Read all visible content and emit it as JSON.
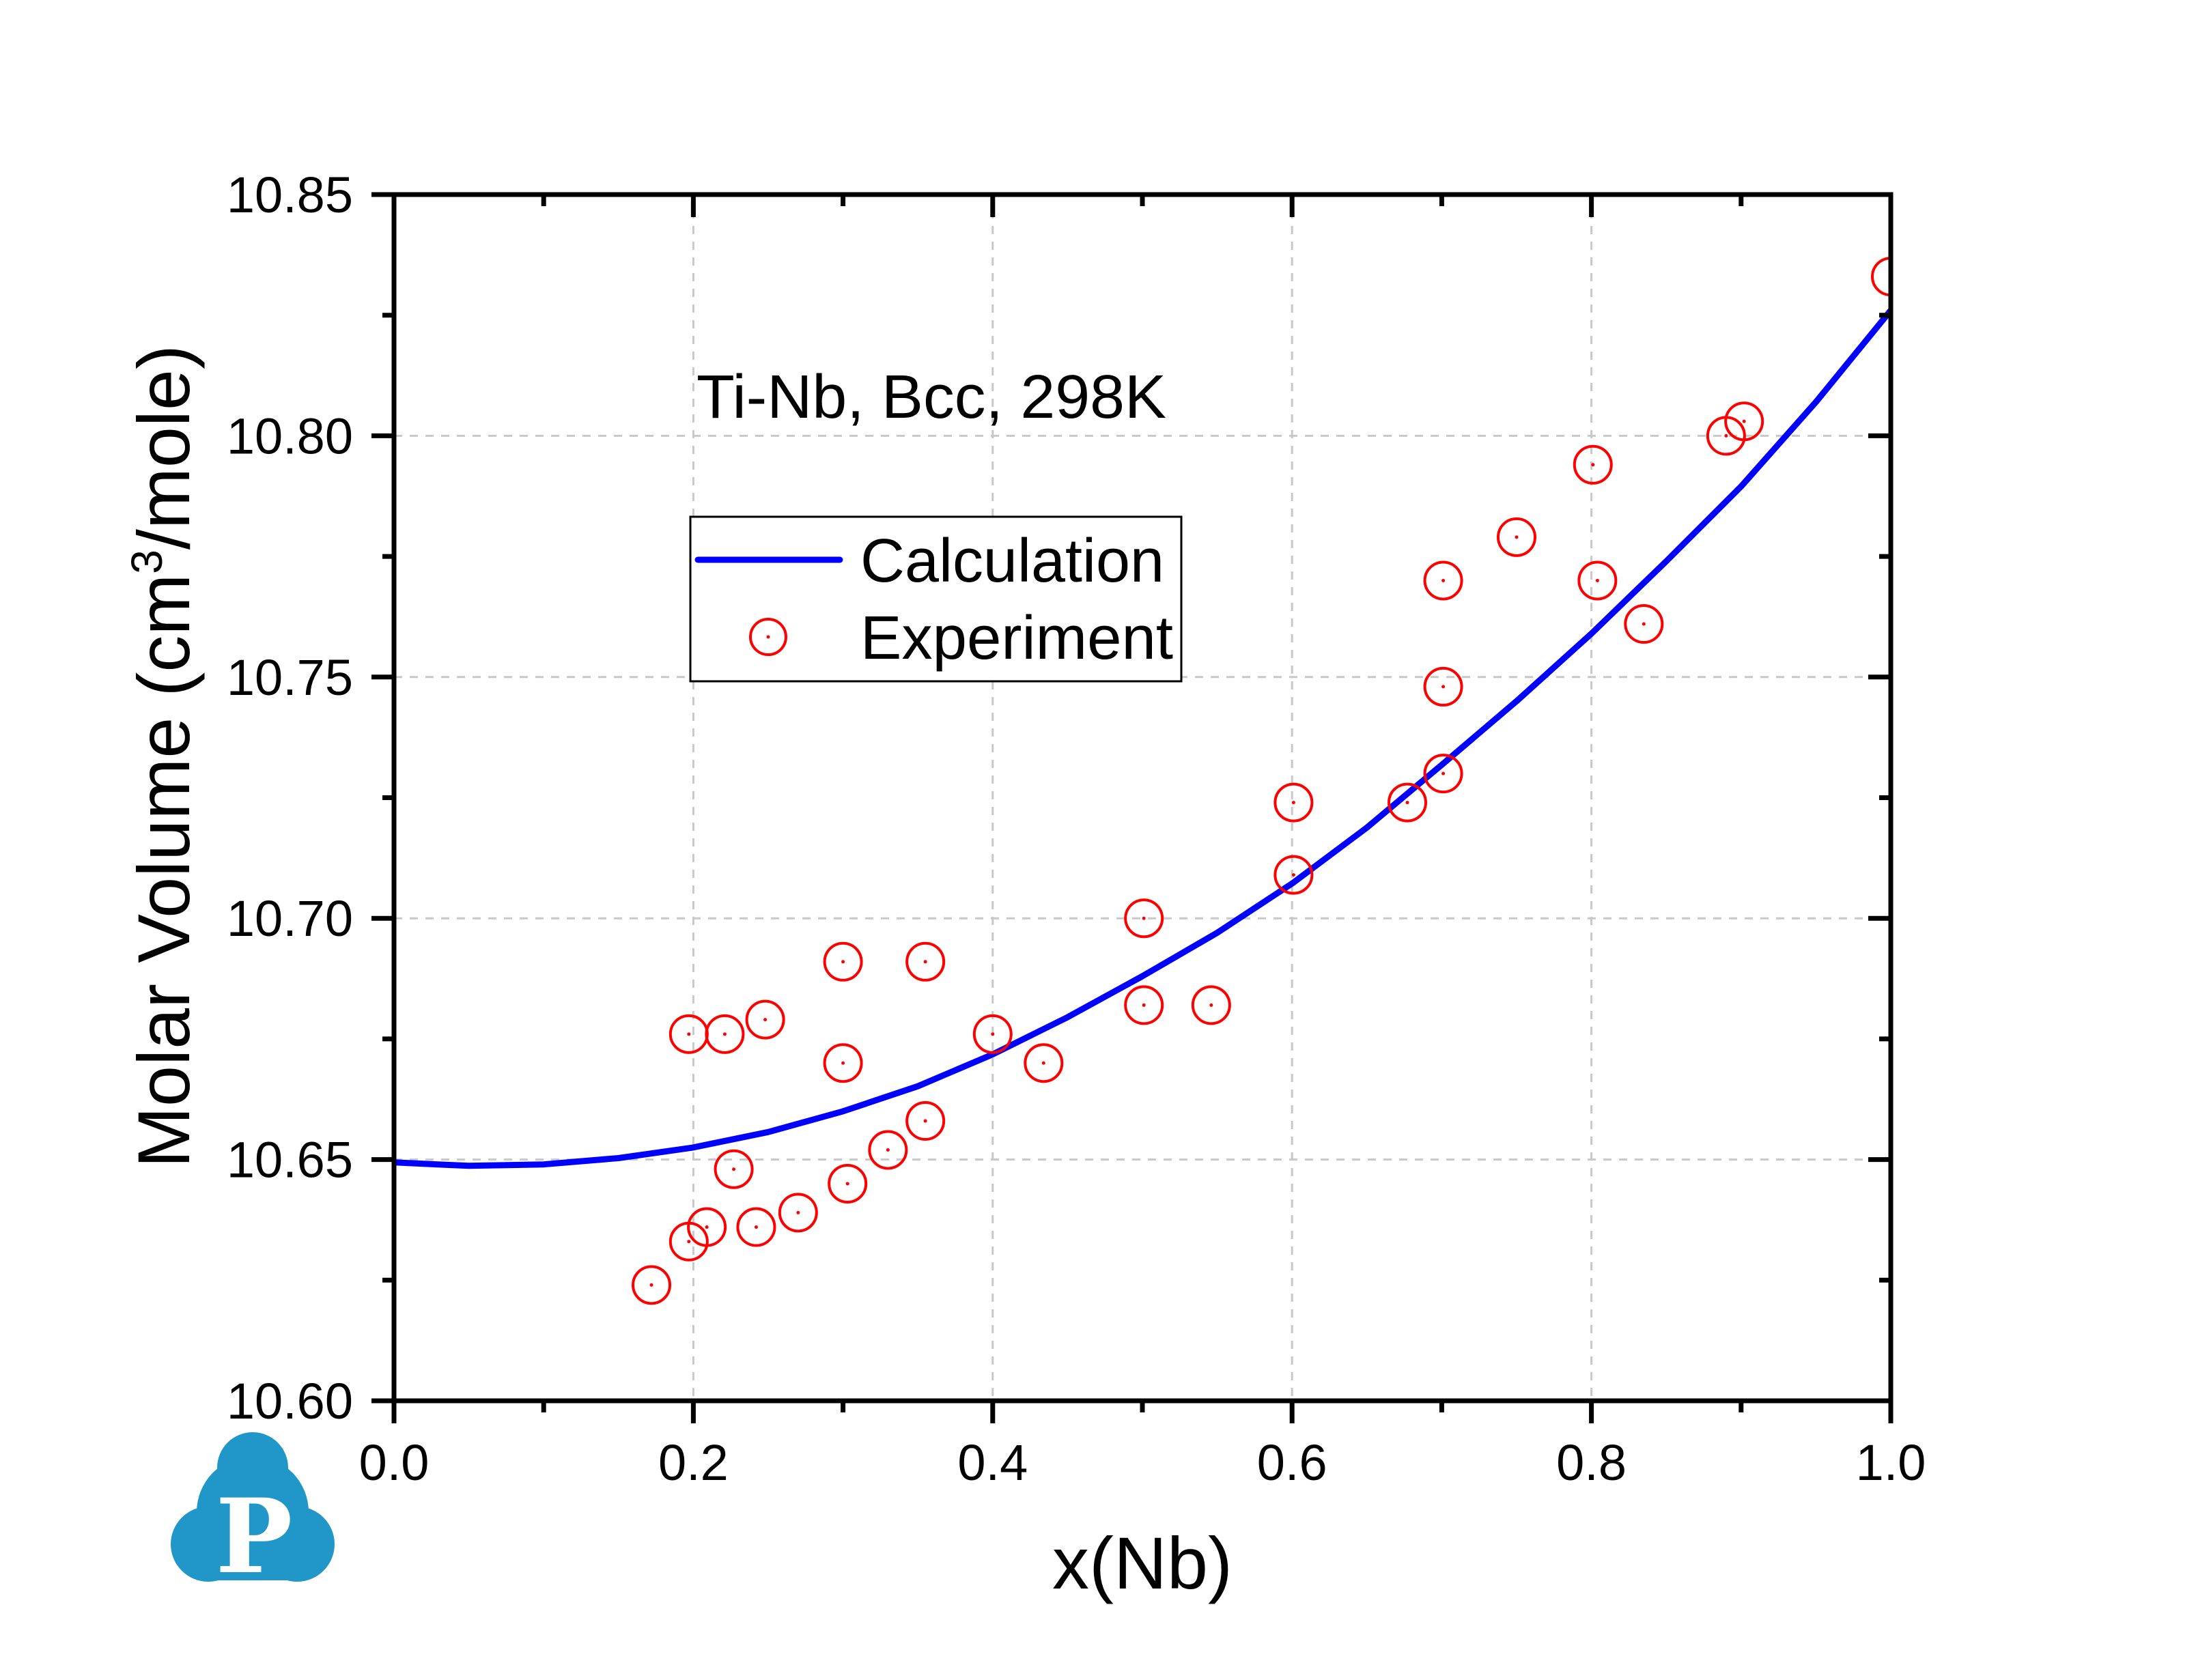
{
  "chart_data": {
    "type": "scatter",
    "title": "",
    "annotation": "Ti-Nb, Bcc, 298K",
    "xlabel": "x(Nb)",
    "ylabel_main": "Molar Volume (cm",
    "ylabel_sup": "3",
    "ylabel_tail": "/mole)",
    "xlim": [
      0.0,
      1.0
    ],
    "ylim": [
      10.6,
      10.85
    ],
    "x_ticks": [
      0.0,
      0.2,
      0.4,
      0.6,
      0.8,
      1.0
    ],
    "x_tick_labels": [
      "0.0",
      "0.2",
      "0.4",
      "0.6",
      "0.8",
      "1.0"
    ],
    "x_minor_ticks": [
      0.1,
      0.3,
      0.5,
      0.7,
      0.9
    ],
    "y_ticks": [
      10.6,
      10.65,
      10.7,
      10.75,
      10.8,
      10.85
    ],
    "y_tick_labels": [
      "10.60",
      "10.65",
      "10.70",
      "10.75",
      "10.80",
      "10.85"
    ],
    "y_minor_ticks": [
      10.625,
      10.675,
      10.725,
      10.775,
      10.825
    ],
    "grid": true,
    "legend_position": "upper-left-center",
    "series": [
      {
        "name": "Calculation",
        "kind": "line",
        "color": "#0000ff",
        "x": [
          0.0,
          0.05,
          0.1,
          0.15,
          0.2,
          0.25,
          0.3,
          0.35,
          0.4,
          0.45,
          0.5,
          0.55,
          0.6,
          0.65,
          0.7,
          0.75,
          0.8,
          0.85,
          0.9,
          0.95,
          1.0
        ],
        "y": [
          10.6494,
          10.6487,
          10.649,
          10.6503,
          10.6525,
          10.6557,
          10.66,
          10.6652,
          10.6718,
          10.6795,
          10.688,
          10.697,
          10.7072,
          10.7188,
          10.7318,
          10.745,
          10.759,
          10.774,
          10.7895,
          10.807,
          10.826
        ]
      },
      {
        "name": "Experiment",
        "kind": "scatter",
        "color": "#ff0000",
        "marker": "open-circle-with-dot",
        "points": [
          [
            0.172,
            10.624
          ],
          [
            0.197,
            10.633
          ],
          [
            0.209,
            10.636
          ],
          [
            0.197,
            10.676
          ],
          [
            0.221,
            10.676
          ],
          [
            0.227,
            10.648
          ],
          [
            0.242,
            10.636
          ],
          [
            0.248,
            10.679
          ],
          [
            0.27,
            10.639
          ],
          [
            0.3,
            10.691
          ],
          [
            0.3,
            10.67
          ],
          [
            0.303,
            10.645
          ],
          [
            0.33,
            10.652
          ],
          [
            0.355,
            10.691
          ],
          [
            0.355,
            10.658
          ],
          [
            0.4,
            10.676
          ],
          [
            0.434,
            10.67
          ],
          [
            0.501,
            10.7
          ],
          [
            0.501,
            10.682
          ],
          [
            0.546,
            10.682
          ],
          [
            0.601,
            10.724
          ],
          [
            0.601,
            10.709
          ],
          [
            0.677,
            10.724
          ],
          [
            0.701,
            10.77
          ],
          [
            0.701,
            10.748
          ],
          [
            0.701,
            10.73
          ],
          [
            0.75,
            10.779
          ],
          [
            0.801,
            10.794
          ],
          [
            0.804,
            10.77
          ],
          [
            0.835,
            10.761
          ],
          [
            0.89,
            10.8
          ],
          [
            0.902,
            10.803
          ],
          [
            1.0,
            10.833
          ]
        ]
      }
    ]
  },
  "legend": {
    "items": [
      {
        "label": "Calculation",
        "color": "#0000ff",
        "symbol": "line"
      },
      {
        "label": "Experiment",
        "color": "#ff0000",
        "symbol": "open-circle"
      }
    ]
  },
  "logo": {
    "letter": "P",
    "color": "#2196c8",
    "icon": "cloud-p-logo-icon"
  },
  "colors": {
    "axis": "#000000",
    "grid": "#c8c8c8",
    "background": "#ffffff"
  }
}
